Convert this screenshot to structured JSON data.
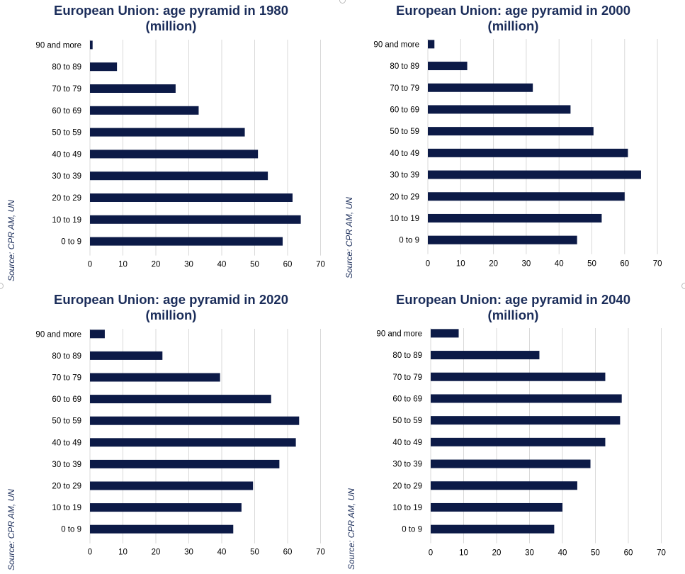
{
  "source_label": "Source: CPR AM, UN",
  "chart_data": [
    {
      "type": "bar",
      "orientation": "horizontal",
      "title_line1": "European Union: age pyramid in 1980",
      "title_line2": "(million)",
      "categories": [
        "90 and more",
        "80 to 89",
        "70 to 79",
        "60 to 69",
        "50 to 59",
        "40 to 49",
        "30 to 39",
        "20 to 29",
        "10 to 19",
        "0 to 9"
      ],
      "values": [
        0.8,
        8.2,
        26,
        33,
        47,
        51,
        54,
        61.5,
        64,
        58.5
      ],
      "xlim": [
        0,
        70
      ],
      "xticks": [
        "0",
        "10",
        "20",
        "30",
        "40",
        "50",
        "60",
        "70"
      ],
      "grid": true,
      "bar_color": "#0c1a47"
    },
    {
      "type": "bar",
      "orientation": "horizontal",
      "title_line1": "European Union: age pyramid in 2000",
      "title_line2": "(million)",
      "categories": [
        "90 and more",
        "80 to 89",
        "70 to 79",
        "60 to 69",
        "50 to 59",
        "40 to 49",
        "30 to 39",
        "20 to 29",
        "10 to 19",
        "0 to 9"
      ],
      "values": [
        2,
        12,
        32,
        43.5,
        50.5,
        61,
        65,
        60,
        53,
        45.5
      ],
      "xlim": [
        0,
        70
      ],
      "xticks": [
        "0",
        "10",
        "20",
        "30",
        "40",
        "50",
        "60",
        "70"
      ],
      "grid": true,
      "bar_color": "#0c1a47"
    },
    {
      "type": "bar",
      "orientation": "horizontal",
      "title_line1": "European Union: age pyramid in 2020",
      "title_line2": "(million)",
      "categories": [
        "90 and more",
        "80 to 89",
        "70 to 79",
        "60 to 69",
        "50 to 59",
        "40 to 49",
        "30 to 39",
        "20 to 29",
        "10 to 19",
        "0 to 9"
      ],
      "values": [
        4.5,
        22,
        39.5,
        55,
        63.5,
        62.5,
        57.5,
        49.5,
        46,
        43.5
      ],
      "xlim": [
        0,
        70
      ],
      "xticks": [
        "0",
        "10",
        "20",
        "30",
        "40",
        "50",
        "60",
        "70"
      ],
      "grid": true,
      "bar_color": "#0c1a47"
    },
    {
      "type": "bar",
      "orientation": "horizontal",
      "title_line1": "European Union: age pyramid in 2040",
      "title_line2": "(million)",
      "categories": [
        "90 and more",
        "80 to 89",
        "70 to 79",
        "60 to 69",
        "50 to 59",
        "40 to 49",
        "30 to 39",
        "20 to 29",
        "10 to 19",
        "0 to 9"
      ],
      "values": [
        8.5,
        33,
        53,
        58,
        57.5,
        53,
        48.5,
        44.5,
        40,
        37.5
      ],
      "xlim": [
        0,
        70
      ],
      "xticks": [
        "0",
        "10",
        "20",
        "30",
        "40",
        "50",
        "60",
        "70"
      ],
      "grid": true,
      "bar_color": "#0c1a47"
    }
  ]
}
